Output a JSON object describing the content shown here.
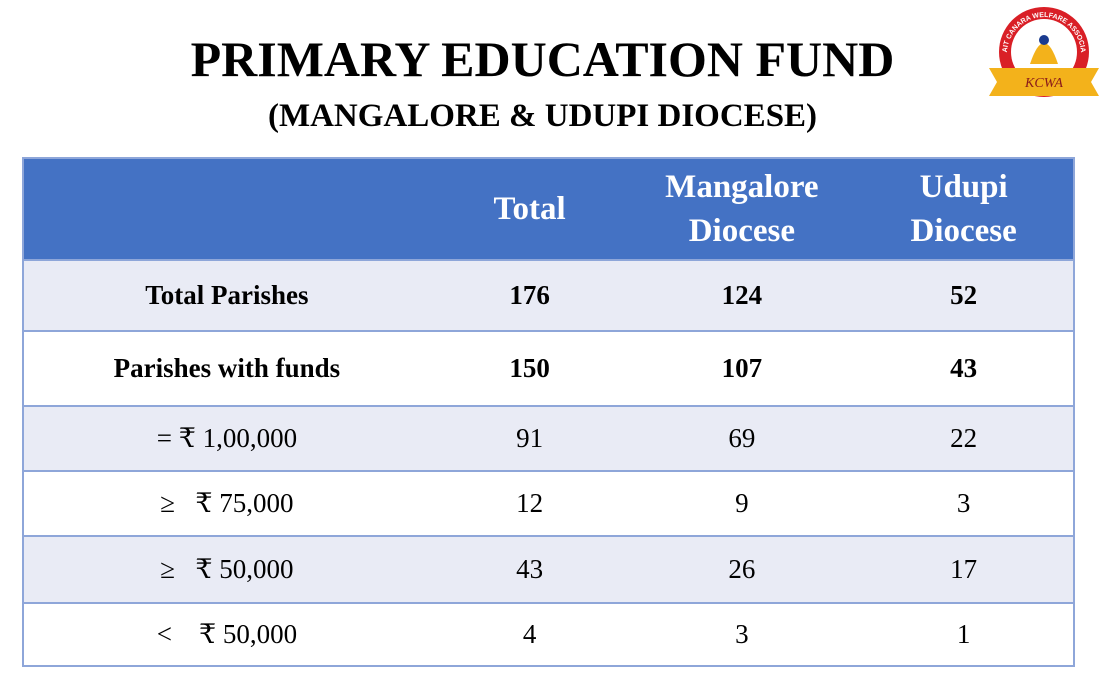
{
  "header": {
    "title": "PRIMARY EDUCATION FUND",
    "subtitle": "(MANGALORE  & UDUPI DIOCESE)"
  },
  "logo": {
    "arc_text": "KUWAIT CANARA WELFARE ASSOCIATION",
    "label": "KCWA"
  },
  "table": {
    "columns": [
      "Total",
      "Mangalore Diocese",
      "Udupi Diocese"
    ],
    "rows": [
      {
        "label": "Total Parishes",
        "values": [
          176,
          124,
          52
        ],
        "bold": true
      },
      {
        "label": "Parishes with funds",
        "values": [
          150,
          107,
          43
        ],
        "bold": true
      },
      {
        "label": "= ₹ 1,00,000",
        "values": [
          91,
          69,
          22
        ],
        "bold": false
      },
      {
        "label": "≥   ₹ 75,000",
        "values": [
          12,
          9,
          3
        ],
        "bold": false
      },
      {
        "label": "≥   ₹ 50,000",
        "values": [
          43,
          26,
          17
        ],
        "bold": false
      },
      {
        "label": "<    ₹ 50,000",
        "values": [
          4,
          3,
          1
        ],
        "bold": false
      }
    ]
  }
}
